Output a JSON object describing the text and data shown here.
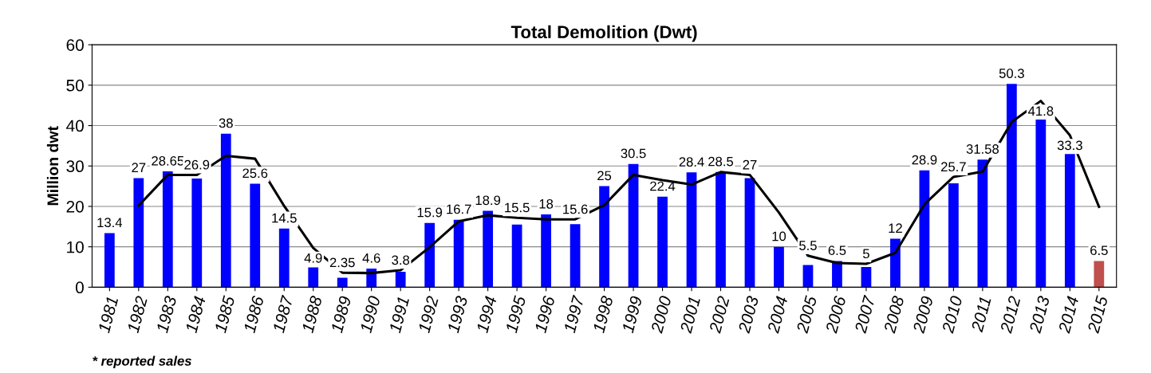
{
  "chart_data": {
    "type": "bar",
    "title": "Total Demolition (Dwt)",
    "ylabel": "Million dwt",
    "categories": [
      "1981",
      "1982",
      "1983",
      "1984",
      "1985",
      "1986",
      "1987",
      "1988",
      "1989",
      "1990",
      "1991",
      "1992",
      "1993",
      "1994",
      "1995",
      "1996",
      "1997",
      "1998",
      "1999",
      "2000",
      "2001",
      "2002",
      "2003",
      "2004",
      "2005",
      "2006",
      "2007",
      "2008",
      "2009",
      "2010",
      "2011",
      "2012",
      "2013",
      "2014",
      "2015"
    ],
    "series": [
      {
        "type": "bar",
        "data_labels": true,
        "colors": [
          "#0000ff",
          "#0000ff",
          "#0000ff",
          "#0000ff",
          "#0000ff",
          "#0000ff",
          "#0000ff",
          "#0000ff",
          "#0000ff",
          "#0000ff",
          "#0000ff",
          "#0000ff",
          "#0000ff",
          "#0000ff",
          "#0000ff",
          "#0000ff",
          "#0000ff",
          "#0000ff",
          "#0000ff",
          "#0000ff",
          "#0000ff",
          "#0000ff",
          "#0000ff",
          "#0000ff",
          "#0000ff",
          "#0000ff",
          "#0000ff",
          "#0000ff",
          "#0000ff",
          "#0000ff",
          "#0000ff",
          "#0000ff",
          "#0000ff",
          "#0000ff",
          "#c0504d"
        ],
        "values": [
          13.4,
          27,
          28.65,
          26.9,
          38,
          25.6,
          14.5,
          4.9,
          2.35,
          4.6,
          3.8,
          15.9,
          16.7,
          18.9,
          15.5,
          18,
          15.6,
          25,
          30.5,
          22.4,
          28.4,
          28.5,
          27,
          10,
          5.5,
          6.5,
          5,
          12,
          28.9,
          25.7,
          31.58,
          50.3,
          41.8,
          33.3,
          6.5
        ]
      },
      {
        "type": "line",
        "color": "#000000",
        "values": [
          null,
          20.2,
          27.8,
          27.8,
          32.5,
          31.8,
          20.1,
          9.7,
          3.6,
          3.5,
          4.2,
          9.9,
          16.3,
          17.8,
          17.2,
          16.8,
          16.8,
          20.3,
          27.8,
          26.5,
          25.4,
          28.5,
          27.8,
          18.5,
          7.8,
          6,
          5.8,
          8.5,
          20.5,
          27.3,
          28.6,
          40.9,
          46.1,
          37.6,
          19.9
        ]
      }
    ],
    "ylim": [
      0,
      60
    ],
    "yticks": [
      0,
      10,
      20,
      30,
      40,
      50,
      60
    ],
    "grid": "y",
    "annotations": [
      "* reported sales"
    ]
  }
}
